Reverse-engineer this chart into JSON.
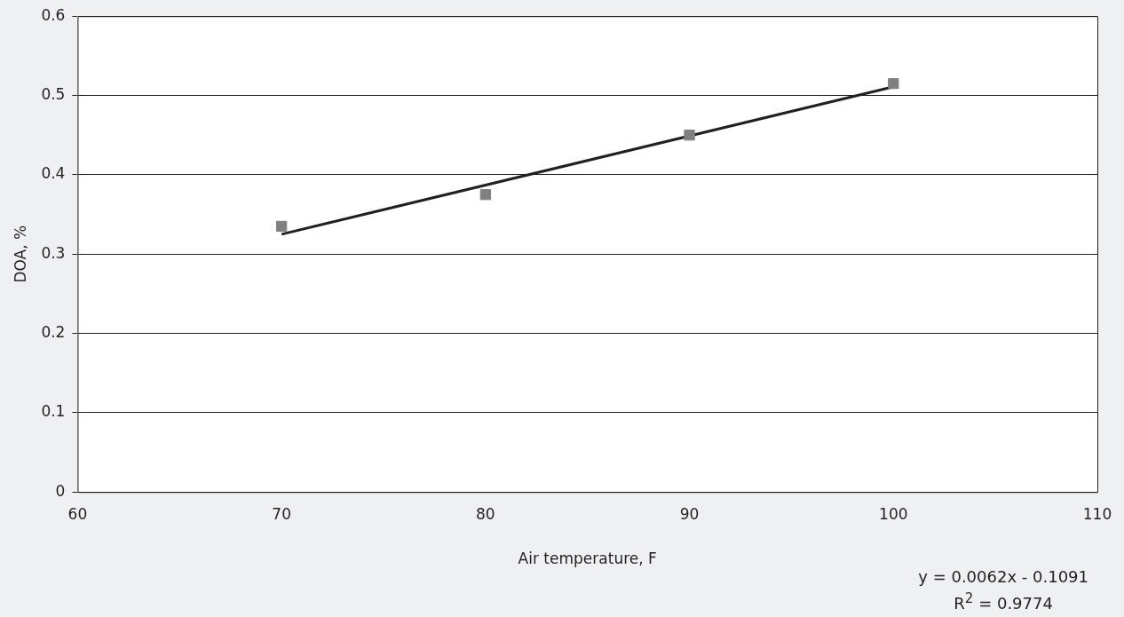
{
  "chart_data": {
    "type": "scatter",
    "xlabel": "Air temperature, F",
    "ylabel": "DOA, %",
    "series": [
      {
        "type": "scatter",
        "color": "#808080",
        "marker": "square",
        "x": [
          70,
          80,
          90,
          100
        ],
        "values": [
          0.335,
          0.375,
          0.45,
          0.515
        ]
      },
      {
        "type": "line",
        "color": "#231f20",
        "marker": "none",
        "x": [
          70,
          100
        ],
        "values": [
          0.325,
          0.511
        ]
      }
    ],
    "xlim": [
      60,
      110
    ],
    "xticks": [
      60,
      70,
      80,
      90,
      100,
      110
    ],
    "ylim": [
      0,
      0.6
    ],
    "yticks": [
      0,
      0.1,
      0.2,
      0.3,
      0.4,
      0.5,
      0.6
    ],
    "grid": "y",
    "legend": false,
    "annotations": [
      "y = 0.0062x - 0.1091",
      "R$^{2}$ = 0.9774"
    ]
  }
}
